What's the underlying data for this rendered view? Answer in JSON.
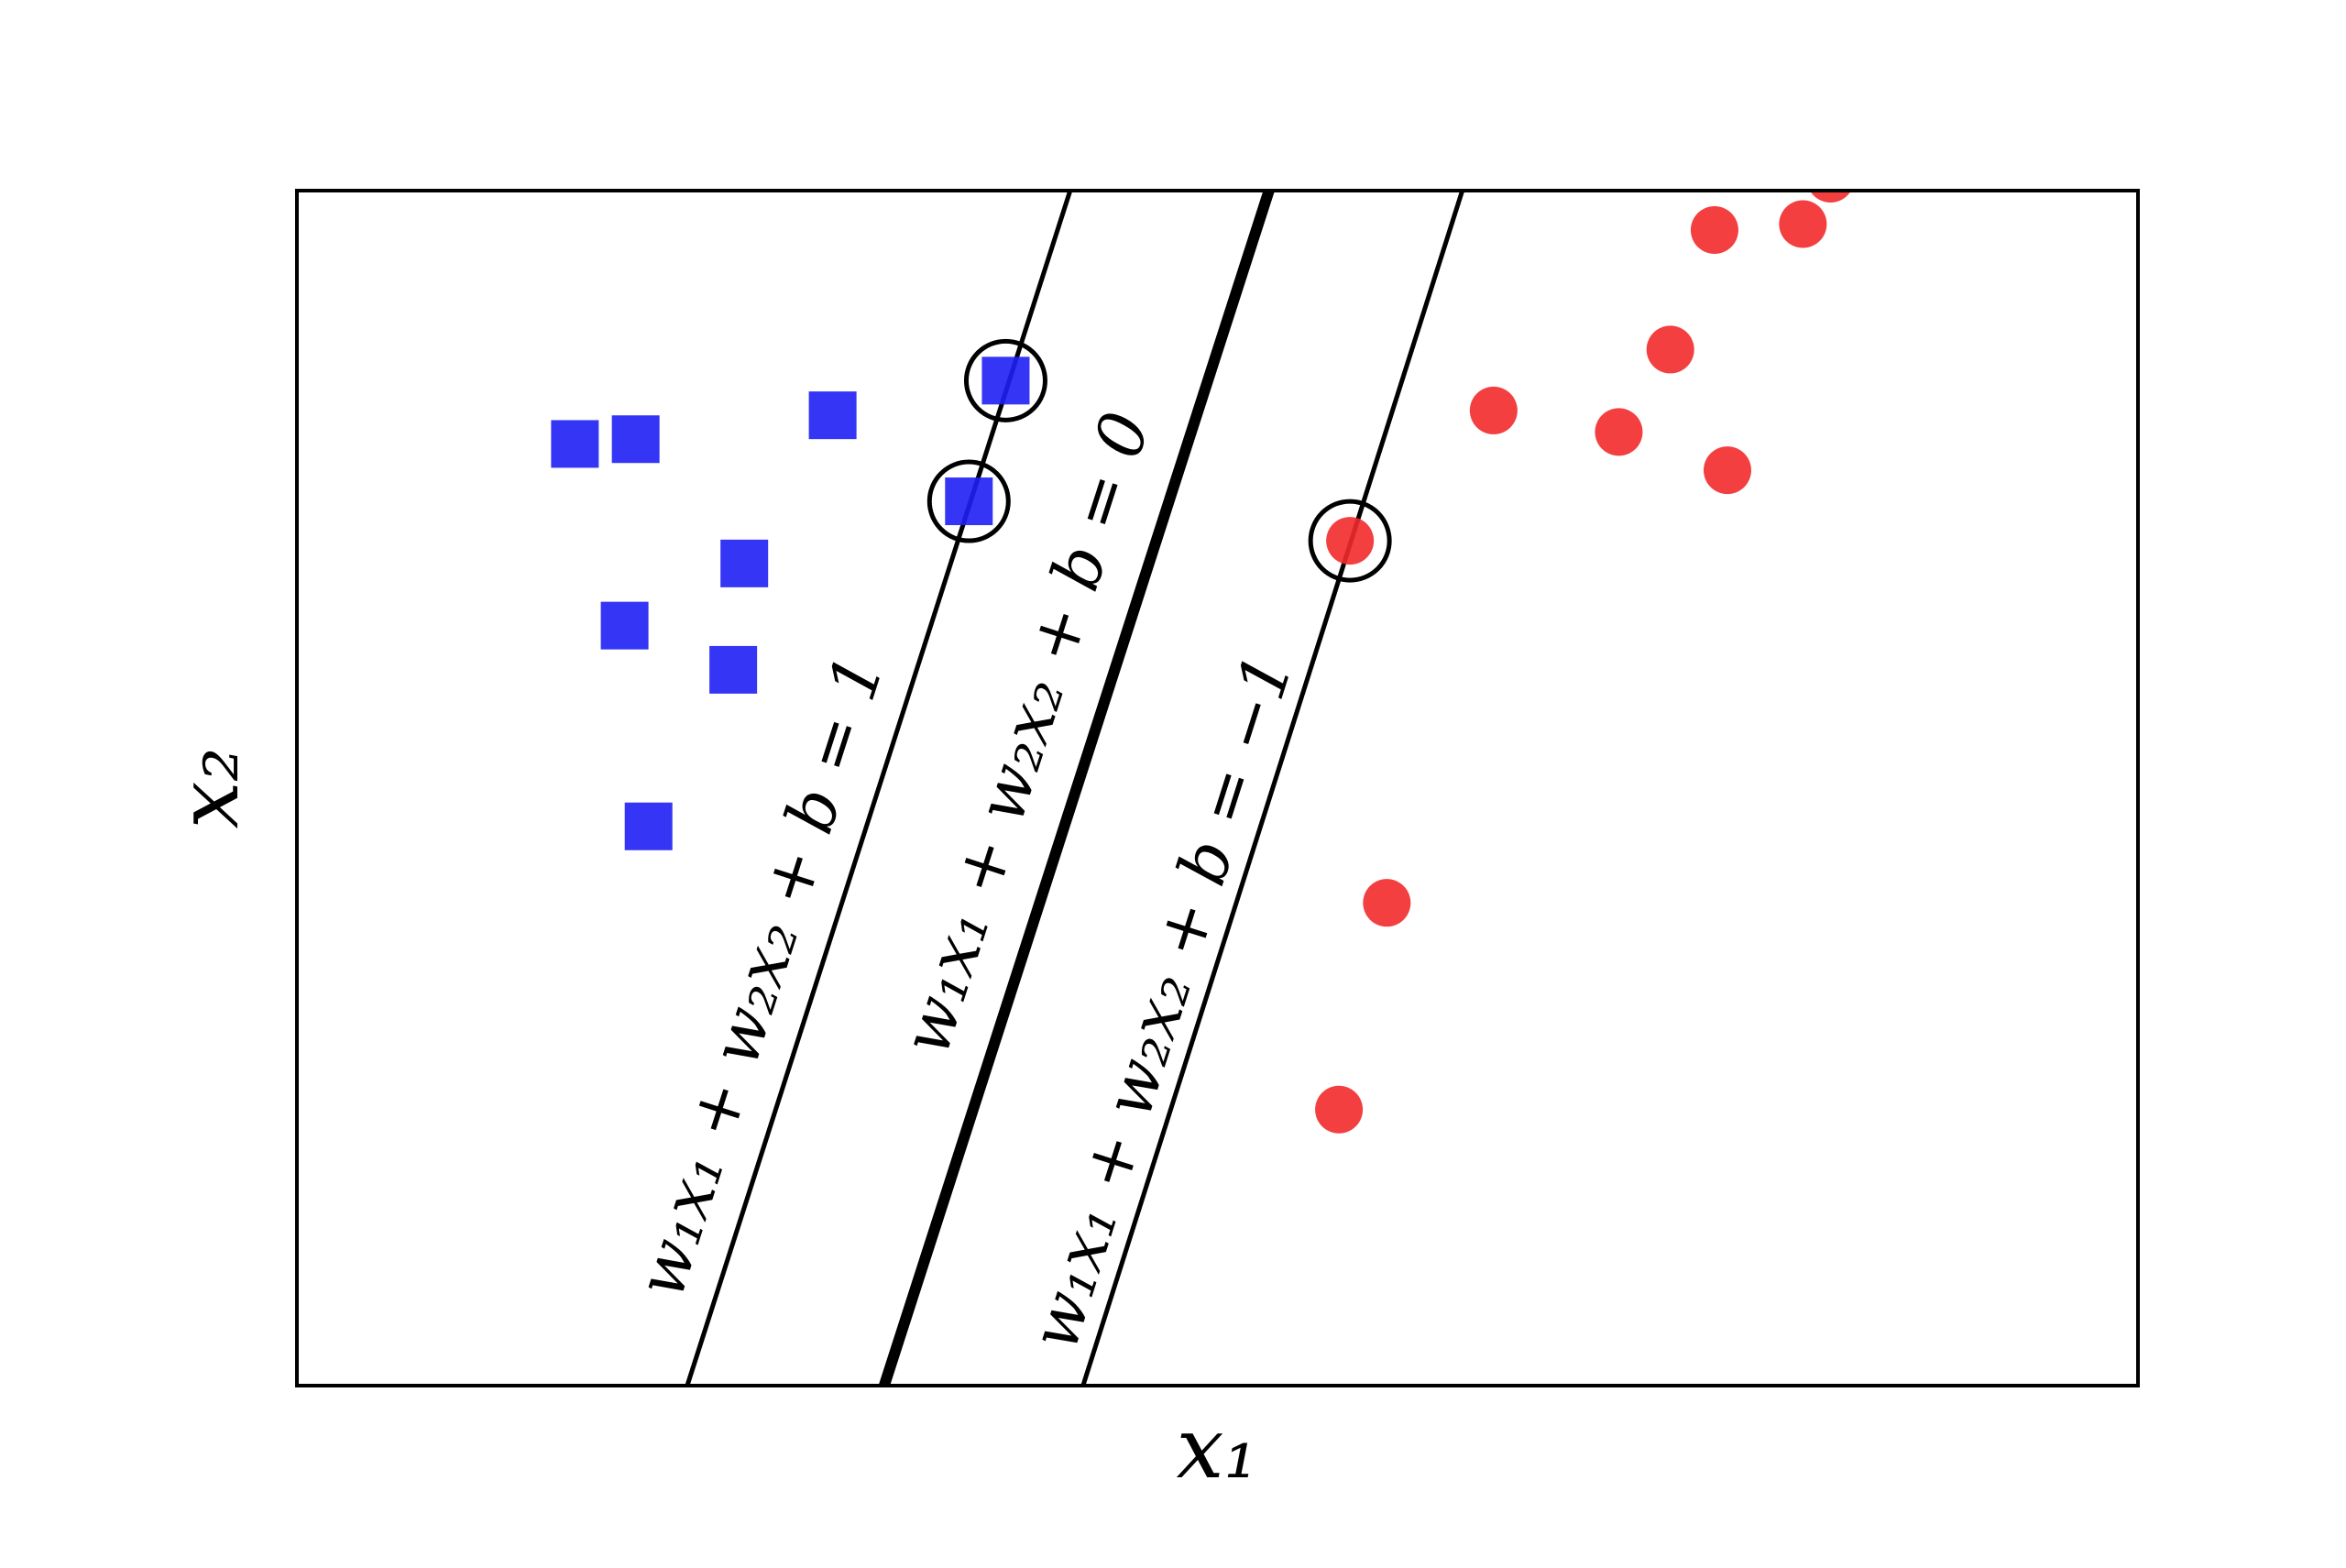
{
  "chart_data": {
    "type": "scatter",
    "xlabel": "x₁",
    "ylabel": "x₂",
    "xlim": [
      0,
      10
    ],
    "ylim": [
      0,
      10
    ],
    "series": [
      {
        "marker": "square",
        "color": "#1f1ff5",
        "x": [
          1.51,
          1.84,
          2.91,
          3.85,
          3.65,
          2.43,
          1.78,
          2.37,
          1.91
        ],
        "y": [
          7.88,
          7.92,
          8.12,
          8.41,
          7.4,
          6.88,
          6.36,
          5.99,
          4.68
        ]
      },
      {
        "marker": "circle",
        "color": "#f22a2a",
        "x": [
          7.7,
          8.18,
          8.33,
          7.46,
          6.5,
          7.18,
          7.77,
          5.72,
          5.92,
          5.66
        ],
        "y": [
          9.67,
          9.72,
          10.1,
          8.67,
          8.16,
          7.98,
          7.66,
          7.07,
          4.04,
          2.31
        ]
      }
    ],
    "highlight": {
      "x": [
        3.85,
        3.65,
        5.72
      ],
      "y": [
        8.41,
        7.4,
        7.07
      ]
    },
    "lines": [
      {
        "label": "w₁x₁ + w₂x₂ + b = 1",
        "x": [
          2.12,
          4.2
        ],
        "y": [
          0,
          10
        ],
        "width": "thin"
      },
      {
        "label": "w₁x₁ + w₂x₂ + b = 0",
        "x": [
          3.19,
          5.28
        ],
        "y": [
          0,
          10
        ],
        "width": "thick"
      },
      {
        "label": "w₁x₁ + w₂x₂ + b = −1",
        "x": [
          4.27,
          6.33
        ],
        "y": [
          0,
          10
        ],
        "width": "thin"
      }
    ]
  }
}
